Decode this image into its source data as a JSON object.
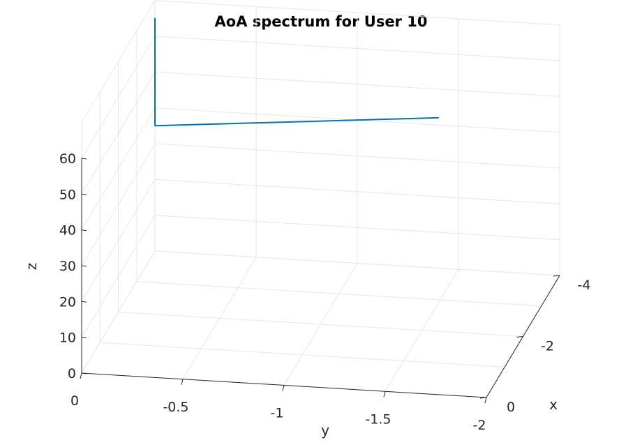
{
  "chart_data": {
    "type": "line3d",
    "title": "AoA spectrum for User 10",
    "xlabel": "x",
    "ylabel": "y",
    "zlabel": "z",
    "xlim": [
      -4,
      0
    ],
    "ylim": [
      -2,
      0
    ],
    "zlim": [
      0,
      60
    ],
    "x_ticks": [
      0,
      -2,
      -4
    ],
    "x_tick_labels": [
      "0",
      "-2",
      "-4"
    ],
    "y_ticks": [
      0,
      -0.5,
      -1,
      -1.5,
      -2
    ],
    "y_tick_labels": [
      "0",
      "-0.5",
      "-1",
      "-1.5",
      "-2"
    ],
    "z_ticks": [
      0,
      10,
      20,
      30,
      40,
      50,
      60
    ],
    "z_tick_labels": [
      "0",
      "10",
      "20",
      "30",
      "40",
      "50",
      "60"
    ],
    "grid": true,
    "series": [
      {
        "color": "#0072bd",
        "points": [
          {
            "x": -4,
            "y": 0,
            "z": 65
          },
          {
            "x": -4,
            "y": 0,
            "z": 35
          },
          {
            "x": -4,
            "y": -1.4,
            "z": 42
          }
        ]
      }
    ]
  }
}
